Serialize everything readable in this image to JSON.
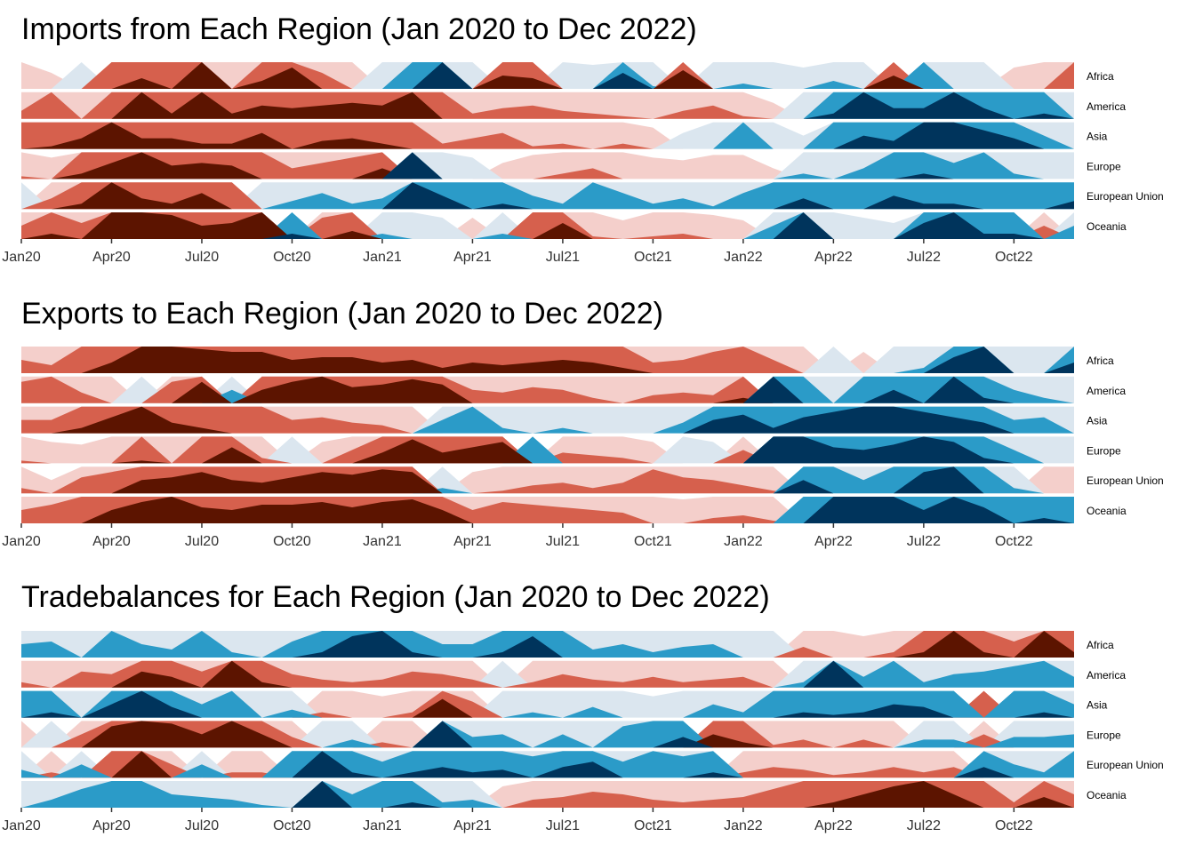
{
  "palette": {
    "neg3": "#67001f",
    "neg2": "#d6604d",
    "neg1": "#f4cfcb",
    "pos1": "#dbe6ef",
    "pos2": "#2b9bc8",
    "pos3": "#053061",
    "neg3_actual": "#5c1400",
    "pos3_actual": "#00345c"
  },
  "chart_data": [
    {
      "type": "area",
      "subtype": "horizon",
      "title": "Imports from Each Region (Jan 2020 to Dec 2022)",
      "x_ticks": [
        "Jan20",
        "Apr20",
        "Jul20",
        "Oct20",
        "Jan21",
        "Apr21",
        "Jul21",
        "Oct21",
        "Jan22",
        "Apr22",
        "Jul22",
        "Oct22"
      ],
      "regions": [
        "Africa",
        "America",
        "Asia",
        "Europe",
        "European Union",
        "Oceania"
      ],
      "bands": 3,
      "series": [
        {
          "name": "Africa",
          "values": [
            -1,
            -0.6,
            1,
            -2,
            -2.4,
            -2,
            -3,
            -1,
            -2.3,
            -2.8,
            -1.6,
            -1,
            1,
            2,
            3,
            1,
            -2.5,
            -2.4,
            1,
            0.9,
            2.6,
            1.1,
            -2.7,
            1,
            1.2,
            1,
            0.8,
            1.3,
            1,
            -2.5,
            2,
            1,
            1,
            -0.8,
            -1,
            -2
          ]
        },
        {
          "name": "America",
          "values": [
            -1.3,
            -2,
            -1,
            -2,
            -3,
            -2.2,
            -3,
            -2.2,
            -2.5,
            -2.4,
            -2.5,
            -2.6,
            -2.5,
            -3,
            -2,
            -1.2,
            -1.4,
            -1.5,
            -1.3,
            -1.2,
            -1.1,
            -1,
            -1.3,
            -1.5,
            -1.1,
            -0.6,
            1,
            2.2,
            3,
            2.4,
            2.4,
            3,
            2.4,
            2,
            2.2,
            1
          ]
        },
        {
          "name": "Asia",
          "values": [
            -2,
            -2.1,
            -2.4,
            -3,
            -2.4,
            -2.4,
            -2.2,
            -2.2,
            -2.6,
            -2,
            -2.3,
            -2.4,
            -2.2,
            -2,
            -1.2,
            -1.4,
            -1.6,
            -1.1,
            -1.2,
            -1,
            -1.2,
            -0.8,
            0.6,
            1,
            2,
            1,
            0.5,
            2,
            2.5,
            2.3,
            3,
            3,
            2.7,
            2.4,
            1.5,
            1
          ]
        },
        {
          "name": "Europe",
          "values": [
            -1.1,
            -0.8,
            -2.2,
            -2.6,
            -3,
            -2.5,
            -2.6,
            -2.5,
            -2,
            -1.4,
            -1.6,
            -1.8,
            -2.4,
            3,
            1,
            0.8,
            -0.6,
            -0.9,
            -1.2,
            -1.4,
            -1,
            -0.8,
            -0.7,
            -0.9,
            -0.9,
            -0.4,
            1.2,
            1,
            1.4,
            2,
            2.2,
            1.6,
            2,
            1.2,
            1,
            1
          ]
        },
        {
          "name": "European Union",
          "values": [
            1,
            -1.4,
            -2.2,
            -3,
            -2.4,
            -2.2,
            -2.6,
            -2,
            1,
            1.3,
            1.6,
            1.2,
            1.4,
            3,
            2.5,
            2,
            2.2,
            1.5,
            1.2,
            2,
            1.6,
            1.2,
            1.4,
            1.1,
            1.6,
            2,
            2.4,
            2,
            2,
            2.5,
            2.2,
            2.2,
            2,
            2,
            2,
            2.3
          ]
        },
        {
          "name": "Oceania",
          "values": [
            -1.5,
            -2.2,
            -1.6,
            -3,
            -3,
            -2.9,
            -2.5,
            -2.6,
            -3,
            2.2,
            -1.8,
            -2.3,
            1.2,
            1,
            0.8,
            -0.8,
            1.2,
            -2,
            -2.6,
            -1.1,
            -0.7,
            -1.1,
            -1.2,
            -0.9,
            -0.7,
            1.5,
            3,
            1,
            0.8,
            0.6,
            2.6,
            3,
            2.2,
            2.2,
            -1.5,
            1.5
          ]
        }
      ]
    },
    {
      "type": "area",
      "subtype": "horizon",
      "title": "Exports to Each Region (Jan 2020 to Dec 2022)",
      "x_ticks": [
        "Jan20",
        "Apr20",
        "Jul20",
        "Oct20",
        "Jan21",
        "Apr21",
        "Jul21",
        "Oct21",
        "Jan22",
        "Apr22",
        "Jul22",
        "Oct22"
      ],
      "regions": [
        "Africa",
        "America",
        "Asia",
        "Europe",
        "European Union",
        "Oceania"
      ],
      "bands": 3,
      "series": [
        {
          "name": "Africa",
          "values": [
            -1.5,
            -1.3,
            -2,
            -2.4,
            -3,
            -3,
            -2.9,
            -2.8,
            -2.8,
            -2.5,
            -2.6,
            -2.6,
            -2.4,
            -2.5,
            -2.2,
            -2.4,
            -2.3,
            -2.4,
            -2.5,
            -2.4,
            -2.2,
            -1.4,
            -1.5,
            -1.8,
            -2,
            -1.5,
            -1,
            1,
            -0.8,
            1,
            1.2,
            2.6,
            3,
            1,
            1,
            2.4
          ]
        },
        {
          "name": "America",
          "values": [
            -1.8,
            -2,
            -1.4,
            -1,
            1,
            -1.8,
            -2.8,
            1.5,
            -2.5,
            -2.8,
            -3,
            -2.6,
            -2.7,
            -2.9,
            -2.7,
            -1.5,
            -1.4,
            -1.6,
            -1.5,
            -1.2,
            -1,
            -1.3,
            -1.4,
            -1.3,
            -2.2,
            3,
            2,
            1,
            2,
            2.5,
            2,
            3,
            2.2,
            1.5,
            1.2,
            1
          ]
        },
        {
          "name": "Asia",
          "values": [
            -1.5,
            -1.5,
            -2.2,
            -2.6,
            -3,
            -2.4,
            -2.2,
            -2,
            -2,
            -1.5,
            -1.6,
            -1.4,
            -1.3,
            -1,
            1.5,
            2,
            1.2,
            1,
            1.2,
            1,
            1,
            1,
            1.4,
            2.5,
            2.7,
            2.2,
            2.6,
            2.8,
            3,
            3,
            2.8,
            2.6,
            2.4,
            1.5,
            1.6,
            1
          ]
        },
        {
          "name": "Europe",
          "values": [
            -1.1,
            -0.8,
            -0.7,
            -1,
            -2.1,
            -1,
            -2,
            -2.6,
            -1.2,
            1,
            -0.8,
            -1.5,
            -2.4,
            -2.9,
            -2.4,
            -2.6,
            -2.8,
            2,
            -1.4,
            -1.3,
            -1.2,
            -0.8,
            1,
            0.8,
            -1.5,
            3,
            3,
            2.6,
            2.5,
            2.7,
            3,
            2.8,
            2.2,
            1.5,
            1,
            1
          ]
        },
        {
          "name": "European Union",
          "values": [
            -1.2,
            -0.5,
            -1.6,
            -1.8,
            -2.5,
            -2.6,
            -2.8,
            -2.5,
            -2.4,
            -2.6,
            -2.8,
            -2.7,
            -2.9,
            -2.8,
            1.2,
            -0.8,
            -1.1,
            -1.3,
            -1.4,
            -1.2,
            -1.4,
            -1.9,
            -1.6,
            -1.5,
            -1.3,
            -1.1,
            2.5,
            2,
            1.5,
            2,
            2.8,
            3,
            2,
            1.2,
            -1,
            -1
          ]
        },
        {
          "name": "Oceania",
          "values": [
            -1.5,
            -1.7,
            -2,
            -2.5,
            -2.8,
            -3,
            -2.6,
            -2.5,
            -2.7,
            -2.7,
            -2.8,
            -2.6,
            -2.8,
            -2.9,
            -2.5,
            -1.5,
            -1.8,
            -1.7,
            -1.6,
            -1.5,
            -1.4,
            -1,
            -0.9,
            -1.2,
            -1.3,
            -1.1,
            2,
            3,
            3,
            3,
            2.5,
            3,
            2.6,
            2,
            2.2,
            2
          ]
        }
      ]
    },
    {
      "type": "area",
      "subtype": "horizon",
      "title": "Tradebalances for Each Region (Jan 2020 to Dec 2022)",
      "x_ticks": [
        "Jan20",
        "Apr20",
        "Jul20",
        "Oct20",
        "Jan21",
        "Apr21",
        "Jul21",
        "Oct21",
        "Jan22",
        "Apr22",
        "Jul22",
        "Oct22"
      ],
      "regions": [
        "Africa",
        "America",
        "Asia",
        "Europe",
        "European Union",
        "Oceania"
      ],
      "bands": 3,
      "series": [
        {
          "name": "Africa",
          "values": [
            1.5,
            1.6,
            1,
            2,
            1.5,
            1.3,
            2,
            1.2,
            1,
            1.6,
            2.2,
            2.8,
            3,
            2.2,
            1.5,
            1.5,
            2.2,
            2.8,
            2,
            1.3,
            1.5,
            1.2,
            1.4,
            1.5,
            1,
            1,
            -1.4,
            -1,
            -0.8,
            -1.2,
            -2.2,
            -3,
            -2.2,
            -1.6,
            -3,
            -2.2
          ]
        },
        {
          "name": "America",
          "values": [
            -1.2,
            -1,
            -1.6,
            -1.5,
            -2.6,
            -2.4,
            -1.6,
            -3,
            -2.2,
            -1.5,
            -1.3,
            -1.2,
            -1.3,
            -1.6,
            -1.5,
            -1.3,
            1,
            -1.2,
            -1.5,
            -1.3,
            -1.2,
            -1.4,
            -1.2,
            -1.3,
            -1.4,
            -1,
            1.2,
            3,
            1.4,
            2,
            1.2,
            1.5,
            1.6,
            1.8,
            2,
            1.4
          ]
        },
        {
          "name": "Asia",
          "values": [
            2,
            2.2,
            1,
            2.5,
            3,
            2.4,
            1.5,
            2,
            1,
            1.3,
            -1.2,
            -1,
            -0.8,
            -1.2,
            -2.7,
            -1.6,
            1,
            1.2,
            1,
            1.4,
            1,
            0.8,
            1,
            1.5,
            1.2,
            2,
            2.2,
            2.1,
            2.2,
            2.5,
            2.4,
            2,
            -2,
            2,
            2.2,
            1.5
          ]
        },
        {
          "name": "Europe",
          "values": [
            -1,
            1,
            -1.5,
            -2.8,
            -3,
            -2.9,
            -2.5,
            -3,
            -2.5,
            -1.4,
            1,
            1.3,
            -1.2,
            -1,
            3,
            1.4,
            1.5,
            1,
            1.5,
            1,
            1.8,
            2,
            2.4,
            -2.5,
            -2.2,
            -1.1,
            -1.3,
            -1,
            -1.3,
            -1,
            1.3,
            1.3,
            -1.5,
            1.4,
            1.4,
            1.5
          ]
        },
        {
          "name": "European Union",
          "values": [
            1.3,
            -1.2,
            1.5,
            -2,
            -3,
            -1.5,
            1.5,
            -1.2,
            -1.2,
            2,
            3,
            2.2,
            1.6,
            2.2,
            2.4,
            2.2,
            2.3,
            1.8,
            2.4,
            2.6,
            1.6,
            2,
            1.8,
            2.2,
            -1.2,
            -1.4,
            -1.3,
            -1.1,
            -1.2,
            -1.4,
            -1.2,
            -1.4,
            2.4,
            1.5,
            1.2,
            2
          ]
        },
        {
          "name": "Oceania",
          "values": [
            1,
            1.3,
            1.7,
            2,
            2,
            1.5,
            1.4,
            1.3,
            1.1,
            1,
            3,
            1.5,
            2,
            2.2,
            1.2,
            1.3,
            -0.8,
            -1.3,
            -1.4,
            -1.6,
            -1.5,
            -1.3,
            -1.2,
            -1.3,
            -1.4,
            -1.7,
            -2,
            -2.2,
            -2.5,
            -2.8,
            -3,
            -2.5,
            -2,
            -1.2,
            -2.4,
            -1.5
          ]
        }
      ]
    }
  ]
}
